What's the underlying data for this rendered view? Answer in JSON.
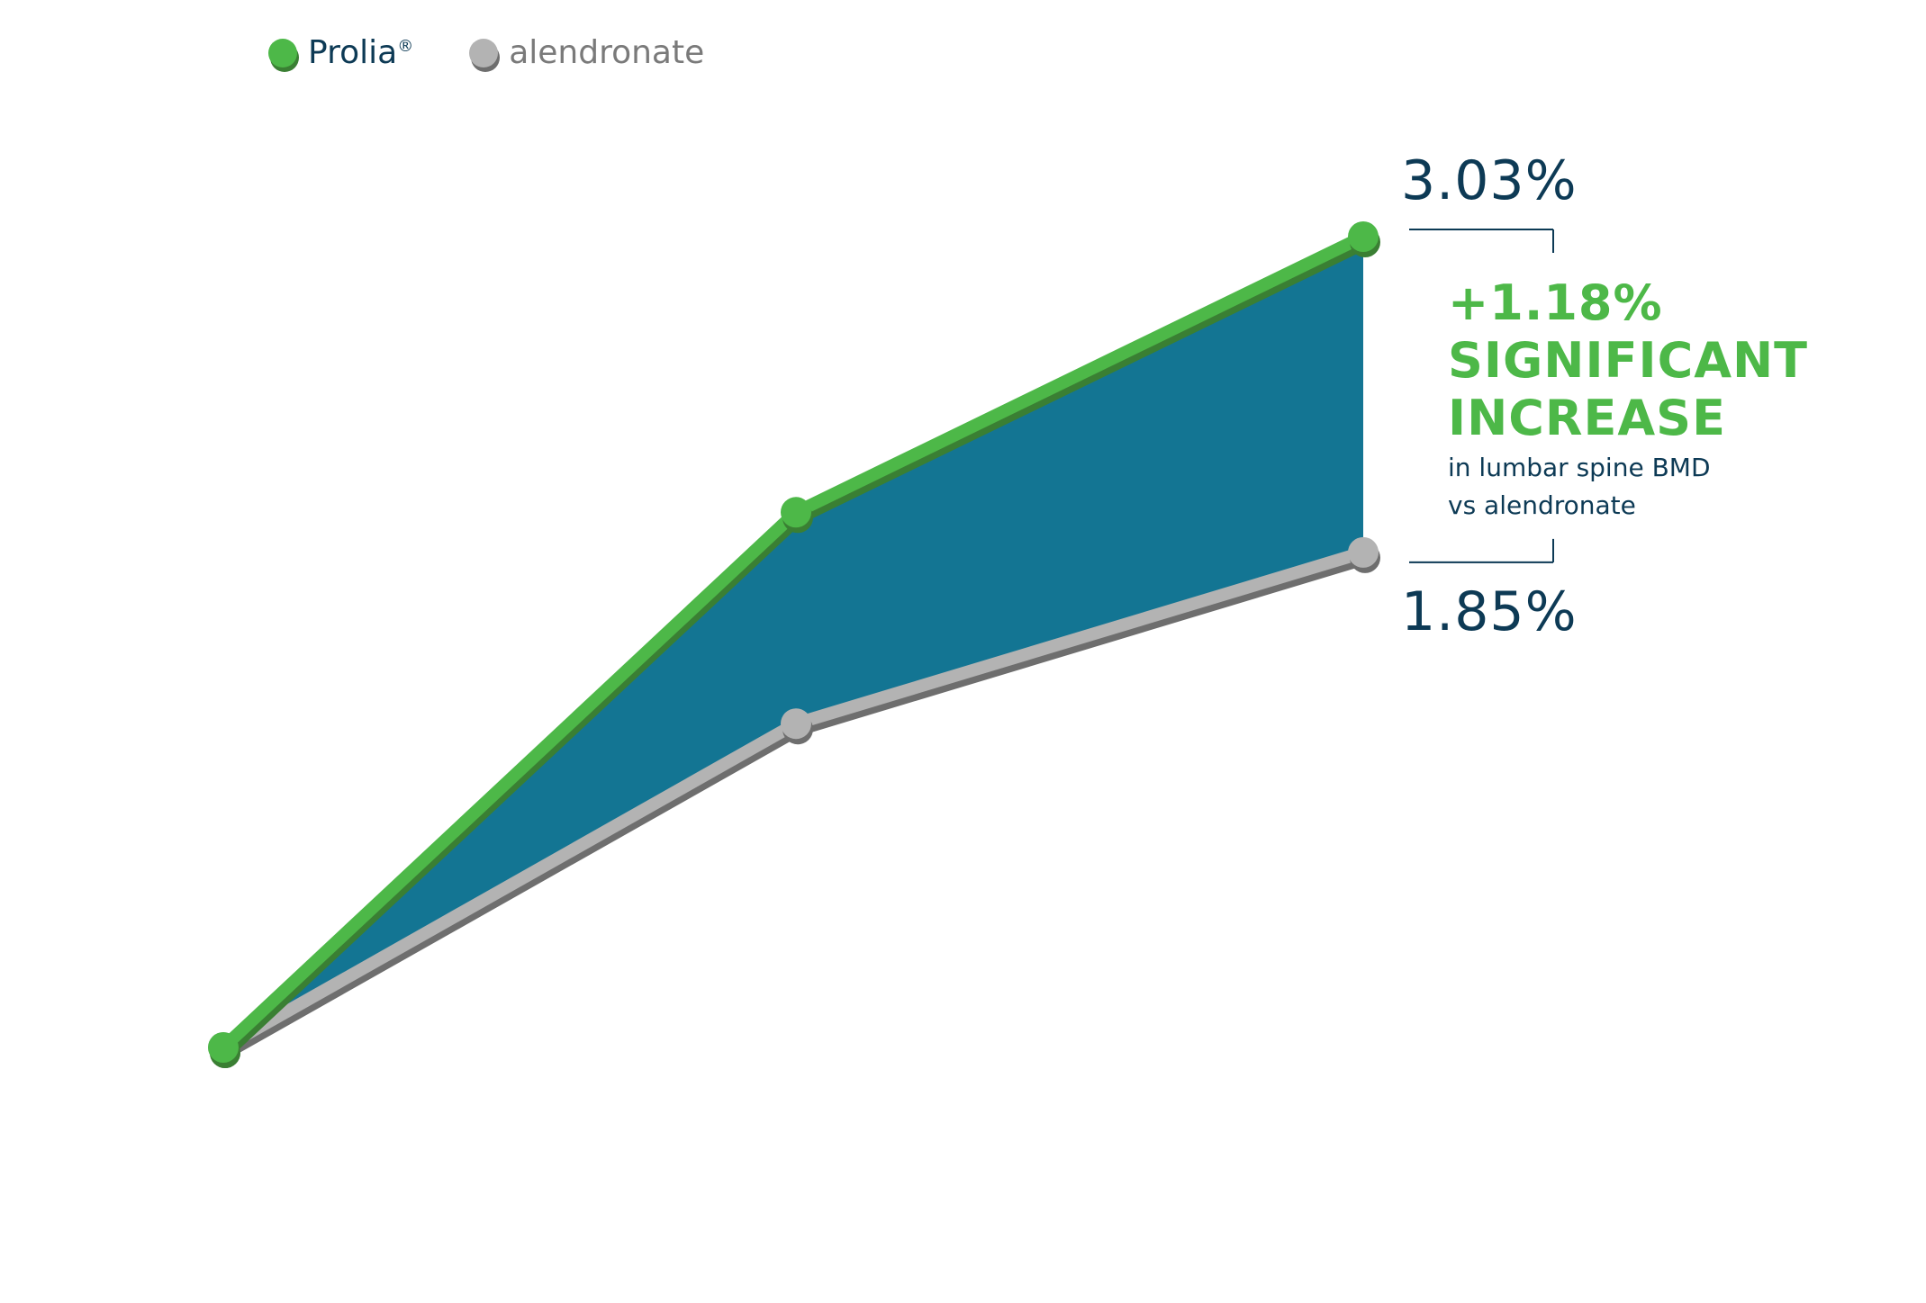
{
  "legend": [
    {
      "label": "Prolia",
      "superscript": "®",
      "color": "#4db848"
    },
    {
      "label": "alendronate",
      "color": "#b3b3b3"
    }
  ],
  "annotation": {
    "top_value": "3.03%",
    "bottom_value": "1.85%",
    "difference": "+1.18%",
    "headline_line1": "SIGNIFICANT",
    "headline_line2": "INCREASE",
    "sub_line1": "in lumbar spine BMD",
    "sub_line2": "vs alendronate"
  },
  "colors": {
    "prolia": "#4db848",
    "prolia_shadow": "#3a7f33",
    "alendronate": "#b3b3b3",
    "alendronate_shadow": "#6e6e6e",
    "fill": "#137593",
    "text_dark": "#0d3a55"
  },
  "chart_data": {
    "type": "line",
    "x": [
      0,
      1,
      2
    ],
    "series": [
      {
        "name": "Prolia®",
        "values": [
          0,
          2.0,
          3.03
        ]
      },
      {
        "name": "alendronate",
        "values": [
          0,
          1.21,
          1.85
        ]
      }
    ],
    "ylim": [
      0,
      3.03
    ],
    "grid": false,
    "legend": "top-left",
    "fill_between": true
  }
}
